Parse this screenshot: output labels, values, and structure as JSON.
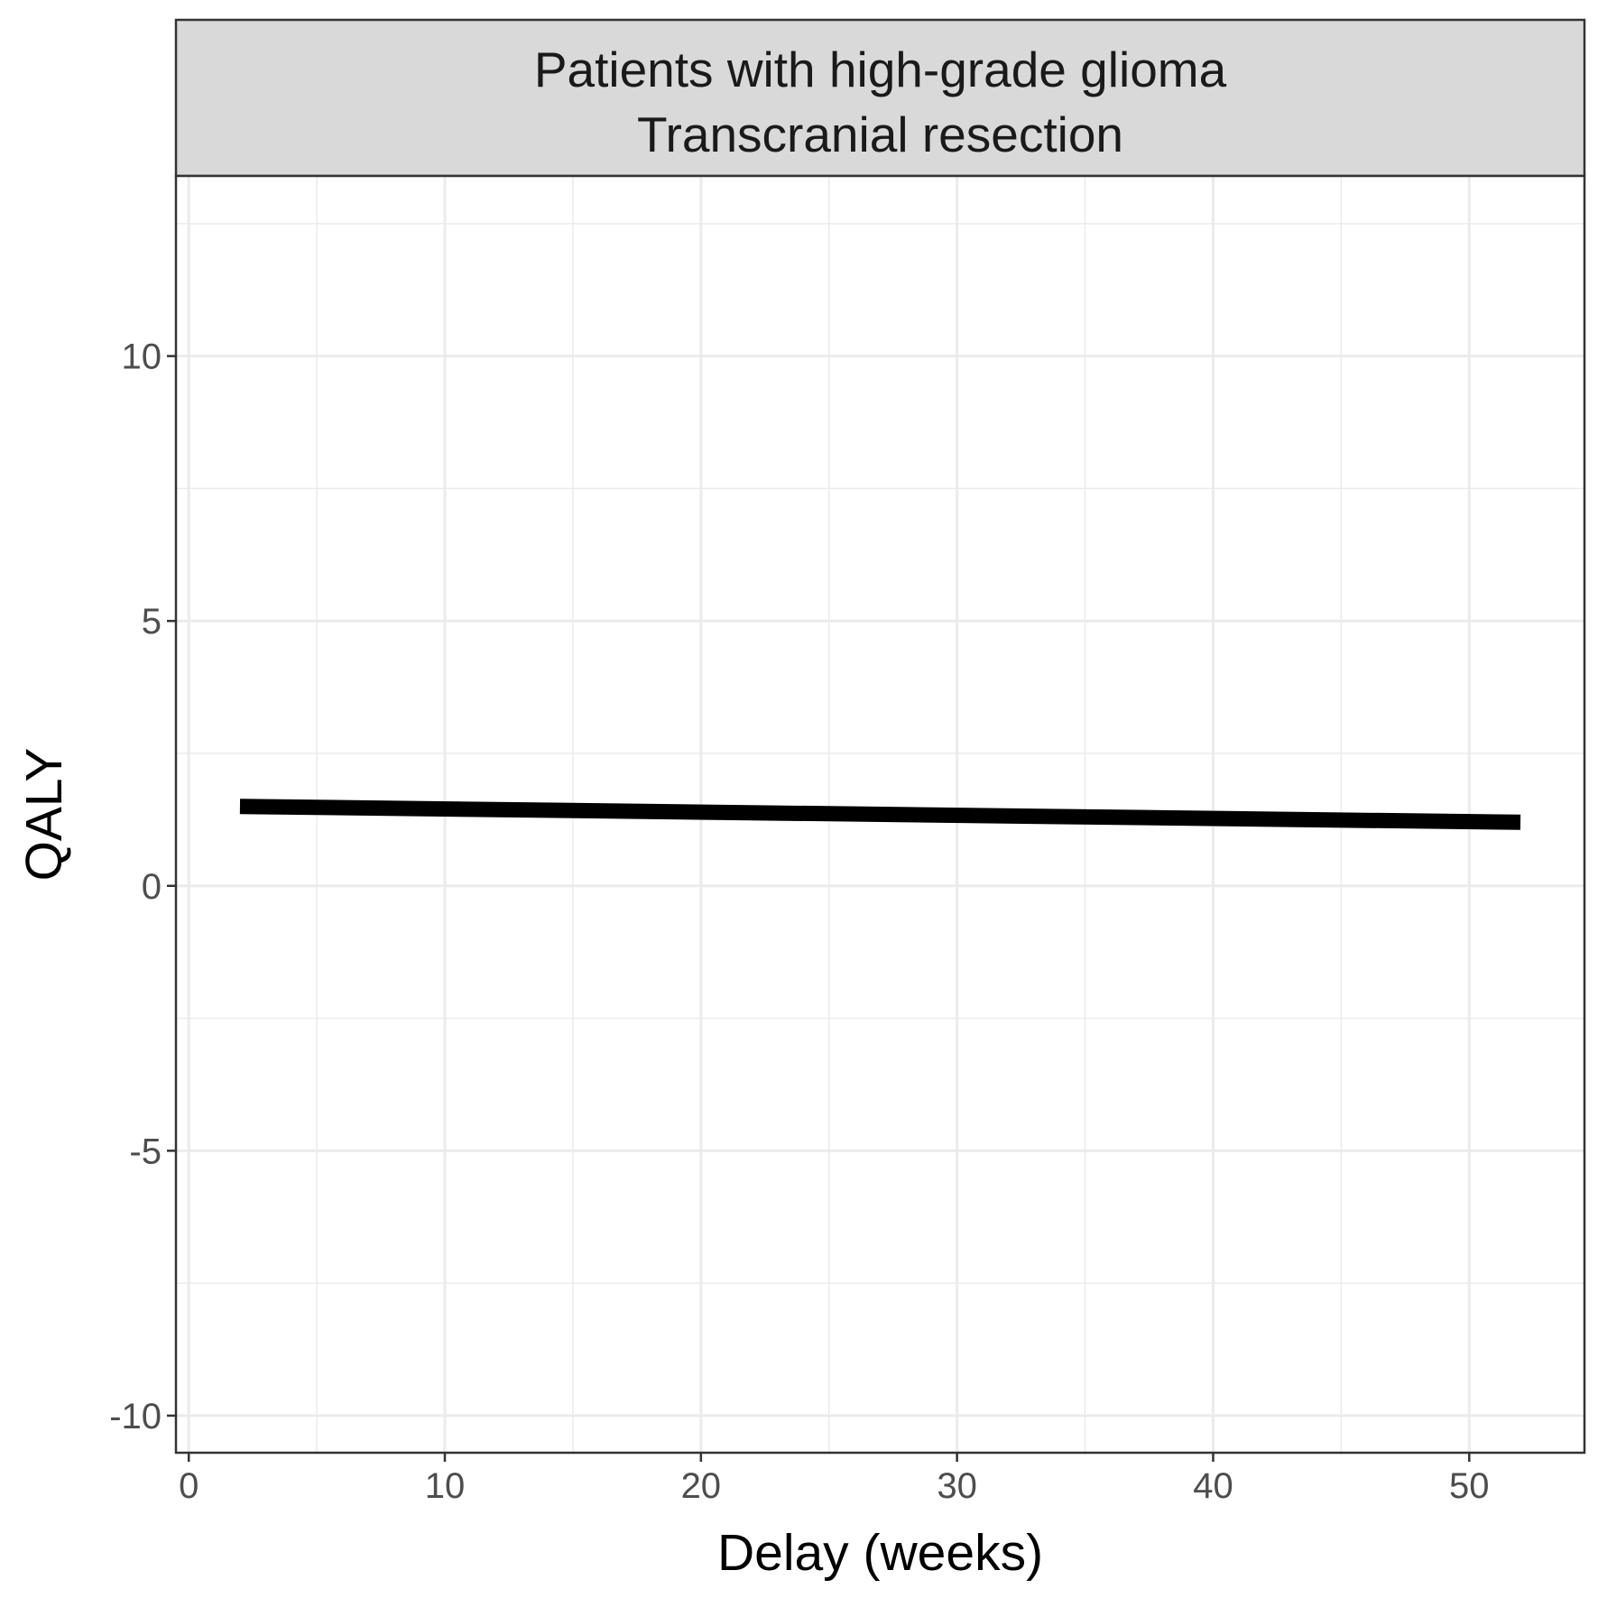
{
  "chart_data": {
    "type": "line",
    "title": "Patients with high-grade glioma",
    "subtitle": "Transcranial resection",
    "xlabel": "Delay (weeks)",
    "ylabel": "QALY",
    "xlim": [
      -0.5,
      54.5
    ],
    "ylim": [
      -10.7,
      13.4
    ],
    "x_ticks": [
      0,
      10,
      20,
      30,
      40,
      50
    ],
    "x_tick_labels": [
      "0",
      "10",
      "20",
      "30",
      "40",
      "50"
    ],
    "y_ticks": [
      -10,
      -5,
      0,
      5,
      10
    ],
    "y_tick_labels": [
      "-10",
      "-5",
      "0",
      "5",
      "10"
    ],
    "x_minor": [
      5,
      15,
      25,
      35,
      45
    ],
    "y_minor": [
      -7.5,
      -2.5,
      2.5,
      7.5,
      12.5
    ],
    "grid": true,
    "legend": "none",
    "series": [
      {
        "color": "#000000",
        "x": [
          2,
          52
        ],
        "y": [
          1.5,
          1.2
        ]
      }
    ]
  }
}
